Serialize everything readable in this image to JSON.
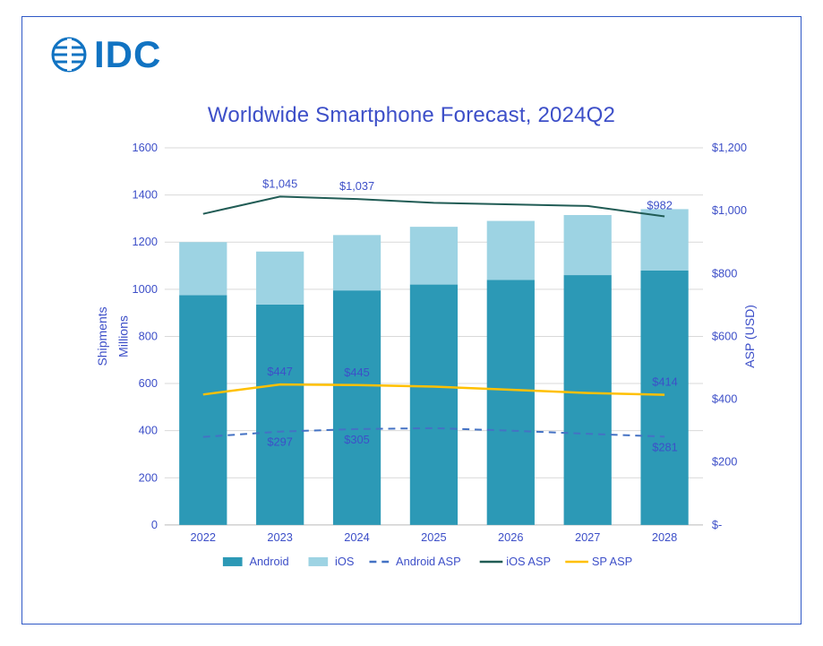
{
  "logo": {
    "text": "IDC",
    "color": "#1173c2"
  },
  "title": "Worldwide Smartphone Forecast, 2024Q2",
  "title_color": "#3d4fc8",
  "chart": {
    "type": "stacked-bar+line",
    "categories": [
      "2022",
      "2023",
      "2024",
      "2025",
      "2026",
      "2027",
      "2028"
    ],
    "bars": {
      "Android": {
        "values": [
          975,
          935,
          995,
          1020,
          1040,
          1060,
          1080
        ],
        "color": "#2c99b6"
      },
      "iOS": {
        "values": [
          225,
          225,
          235,
          245,
          250,
          255,
          260
        ],
        "color": "#9dd3e3"
      }
    },
    "lines": {
      "androidASP": {
        "values": [
          280,
          297,
          305,
          308,
          300,
          290,
          281
        ],
        "color": "#4472c4",
        "dash": "8,6",
        "width": 2
      },
      "iosASP": {
        "values": [
          990,
          1045,
          1037,
          1025,
          1020,
          1015,
          982
        ],
        "color": "#215c55",
        "dash": null,
        "width": 2
      },
      "spASP": {
        "values": [
          415,
          447,
          445,
          440,
          430,
          420,
          414
        ],
        "color": "#ffc000",
        "dash": null,
        "width": 2.5
      }
    },
    "data_labels": [
      {
        "series": "iosASP",
        "cat": "2023",
        "text": "$1,045"
      },
      {
        "series": "iosASP",
        "cat": "2024",
        "text": "$1,037"
      },
      {
        "series": "iosASP",
        "cat": "2028",
        "text": "$982"
      },
      {
        "series": "spASP",
        "cat": "2023",
        "text": "$447"
      },
      {
        "series": "spASP",
        "cat": "2024",
        "text": "$445"
      },
      {
        "series": "spASP",
        "cat": "2028",
        "text": "$414"
      },
      {
        "series": "androidASP",
        "cat": "2023",
        "text": "$297"
      },
      {
        "series": "androidASP",
        "cat": "2024",
        "text": "$305"
      },
      {
        "series": "androidASP",
        "cat": "2028",
        "text": "$281"
      }
    ],
    "left_axis": {
      "title": "Shipments",
      "subtitle": "Millions",
      "min": 0,
      "max": 1600,
      "step": 200,
      "ticks": [
        "0",
        "200",
        "400",
        "600",
        "800",
        "1000",
        "1200",
        "1400",
        "1600"
      ],
      "color": "#3d4fc8"
    },
    "right_axis": {
      "title": "ASP (USD)",
      "min": 0,
      "max": 1200,
      "step": 200,
      "ticks": [
        "$-",
        "$200",
        "$400",
        "$600",
        "$800",
        "$1,000",
        "$1,200"
      ],
      "color": "#3d4fc8"
    },
    "background_color": "#ffffff",
    "grid_color": "#d9d9d9",
    "bar_width": 0.62,
    "legend": [
      {
        "type": "swatch",
        "label": "Android",
        "color": "#2c99b6"
      },
      {
        "type": "swatch",
        "label": "iOS",
        "color": "#9dd3e3"
      },
      {
        "type": "line",
        "label": "Android ASP",
        "color": "#4472c4",
        "dash": "8,6"
      },
      {
        "type": "line",
        "label": "iOS ASP",
        "color": "#215c55"
      },
      {
        "type": "line",
        "label": "SP ASP",
        "color": "#ffc000"
      }
    ]
  }
}
